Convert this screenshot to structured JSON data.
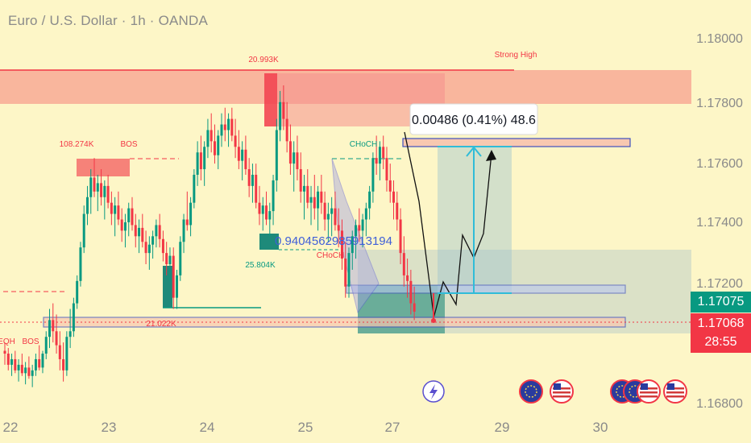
{
  "chart_title": "Euro / U.S. Dollar · 1h · OANDA",
  "measure_label": "0.00486 (0.41%) 48.6",
  "countdown": "28:55",
  "colors": {
    "up": "#089981",
    "down": "#f23645",
    "background": "#fdf6c7",
    "axis_text": "#8a8a8a",
    "zone_red": "#f8aa95",
    "measure": "#30bcd8"
  },
  "annotations": {
    "strong_high": "Strong High",
    "vol_20993": "20.993K",
    "vol_108274": "108.274K",
    "bos_1": "BOS",
    "choch_1": "CHoCH",
    "choch_2": "CHoCH",
    "vol_25804": "25.804K",
    "vol_21022": "21.022K",
    "eqh": "EQH",
    "bos_2": "BOS",
    "fib_text": "0.9404562985913194"
  },
  "chart_data": {
    "type": "candlestick",
    "title": "Euro / U.S. Dollar · 1h · OANDA",
    "x_ticks": [
      "22",
      "23",
      "24",
      "25",
      "27",
      "29",
      "30"
    ],
    "y_ticks": [
      "1.18000",
      "1.17800",
      "1.17600",
      "1.17400",
      "1.17200",
      "1.16800"
    ],
    "ylim": [
      1.1675,
      1.1805
    ],
    "current_price": 1.17075,
    "last_price": 1.17068,
    "candles": [
      [
        1.1693,
        1.1696,
        1.1688,
        1.1692
      ],
      [
        1.1692,
        1.1694,
        1.1686,
        1.1688
      ],
      [
        1.1688,
        1.1692,
        1.1684,
        1.169
      ],
      [
        1.169,
        1.1693,
        1.1685,
        1.1686
      ],
      [
        1.1686,
        1.169,
        1.1682,
        1.1688
      ],
      [
        1.1688,
        1.1692,
        1.1684,
        1.1685
      ],
      [
        1.1685,
        1.1689,
        1.1681,
        1.1687
      ],
      [
        1.1687,
        1.1691,
        1.1683,
        1.1684
      ],
      [
        1.1684,
        1.1688,
        1.168,
        1.1686
      ],
      [
        1.1686,
        1.1692,
        1.1684,
        1.169
      ],
      [
        1.169,
        1.1695,
        1.1686,
        1.1687
      ],
      [
        1.1687,
        1.1693,
        1.1685,
        1.1692
      ],
      [
        1.1692,
        1.17,
        1.169,
        1.1698
      ],
      [
        1.1698,
        1.1708,
        1.1694,
        1.1704
      ],
      [
        1.1704,
        1.171,
        1.1696,
        1.17
      ],
      [
        1.17,
        1.1706,
        1.1692,
        1.1695
      ],
      [
        1.1695,
        1.17,
        1.1686,
        1.169
      ],
      [
        1.169,
        1.1696,
        1.1682,
        1.1686
      ],
      [
        1.1686,
        1.17,
        1.1684,
        1.1698
      ],
      [
        1.1698,
        1.1708,
        1.1694,
        1.17
      ],
      [
        1.17,
        1.1712,
        1.1698,
        1.171
      ],
      [
        1.171,
        1.172,
        1.1708,
        1.1718
      ],
      [
        1.1718,
        1.1732,
        1.1716,
        1.173
      ],
      [
        1.173,
        1.1745,
        1.1728,
        1.1742
      ],
      [
        1.1742,
        1.1752,
        1.1738,
        1.1748
      ],
      [
        1.1748,
        1.1758,
        1.1742,
        1.1755
      ],
      [
        1.1755,
        1.1762,
        1.1748,
        1.175
      ],
      [
        1.175,
        1.1756,
        1.1743,
        1.1753
      ],
      [
        1.1753,
        1.1758,
        1.1745,
        1.1748
      ],
      [
        1.1748,
        1.1754,
        1.174,
        1.1752
      ],
      [
        1.1752,
        1.1756,
        1.1744,
        1.1746
      ],
      [
        1.1746,
        1.175,
        1.1738,
        1.1742
      ],
      [
        1.1742,
        1.1748,
        1.1734,
        1.1745
      ],
      [
        1.1745,
        1.175,
        1.1738,
        1.174
      ],
      [
        1.174,
        1.1744,
        1.1732,
        1.1736
      ],
      [
        1.1736,
        1.1742,
        1.173,
        1.1739
      ],
      [
        1.1739,
        1.1746,
        1.1734,
        1.1744
      ],
      [
        1.1744,
        1.1748,
        1.1736,
        1.1738
      ],
      [
        1.1738,
        1.1742,
        1.173,
        1.1734
      ],
      [
        1.1734,
        1.174,
        1.1728,
        1.1737
      ],
      [
        1.1737,
        1.1742,
        1.173,
        1.1732
      ],
      [
        1.1732,
        1.1736,
        1.1724,
        1.1728
      ],
      [
        1.1728,
        1.1734,
        1.1722,
        1.1731
      ],
      [
        1.1731,
        1.1736,
        1.1726,
        1.1734
      ],
      [
        1.1734,
        1.174,
        1.173,
        1.1738
      ],
      [
        1.1738,
        1.1742,
        1.173,
        1.1733
      ],
      [
        1.1733,
        1.1736,
        1.1725,
        1.1728
      ],
      [
        1.1728,
        1.1732,
        1.172,
        1.1724
      ],
      [
        1.1724,
        1.173,
        1.1718,
        1.1727
      ],
      [
        1.1727,
        1.173,
        1.1708,
        1.1712
      ],
      [
        1.1712,
        1.1722,
        1.1708,
        1.172
      ],
      [
        1.172,
        1.1734,
        1.1718,
        1.1732
      ],
      [
        1.1732,
        1.1742,
        1.1728,
        1.174
      ],
      [
        1.174,
        1.175,
        1.1736,
        1.1738
      ],
      [
        1.1738,
        1.1748,
        1.1734,
        1.1746
      ],
      [
        1.1746,
        1.1758,
        1.1744,
        1.1756
      ],
      [
        1.1756,
        1.1768,
        1.1752,
        1.1764
      ],
      [
        1.1764,
        1.177,
        1.1754,
        1.1758
      ],
      [
        1.1758,
        1.1768,
        1.1752,
        1.1766
      ],
      [
        1.1766,
        1.1776,
        1.1762,
        1.1772
      ],
      [
        1.1772,
        1.1778,
        1.1764,
        1.1768
      ],
      [
        1.1768,
        1.1774,
        1.176,
        1.1763
      ],
      [
        1.1763,
        1.1772,
        1.1758,
        1.177
      ],
      [
        1.177,
        1.1778,
        1.1766,
        1.1774
      ],
      [
        1.1774,
        1.178,
        1.1768,
        1.1772
      ],
      [
        1.1772,
        1.1778,
        1.1766,
        1.1776
      ],
      [
        1.1776,
        1.178,
        1.1768,
        1.177
      ],
      [
        1.177,
        1.1776,
        1.1762,
        1.1766
      ],
      [
        1.1766,
        1.1772,
        1.1758,
        1.1761
      ],
      [
        1.1761,
        1.1768,
        1.1754,
        1.1765
      ],
      [
        1.1765,
        1.177,
        1.1756,
        1.1758
      ],
      [
        1.1758,
        1.1762,
        1.1748,
        1.1752
      ],
      [
        1.1752,
        1.176,
        1.1746,
        1.1756
      ],
      [
        1.1756,
        1.176,
        1.1744,
        1.1746
      ],
      [
        1.1746,
        1.1752,
        1.1738,
        1.1742
      ],
      [
        1.1742,
        1.1748,
        1.1736,
        1.1745
      ],
      [
        1.1745,
        1.175,
        1.1738,
        1.174
      ],
      [
        1.174,
        1.1746,
        1.1734,
        1.1743
      ],
      [
        1.1743,
        1.1756,
        1.1738,
        1.1754
      ],
      [
        1.1754,
        1.1776,
        1.175,
        1.1772
      ],
      [
        1.1772,
        1.1786,
        1.1768,
        1.1782
      ],
      [
        1.1782,
        1.1788,
        1.1772,
        1.1776
      ],
      [
        1.1776,
        1.1782,
        1.1764,
        1.1768
      ],
      [
        1.1768,
        1.1774,
        1.1756,
        1.176
      ],
      [
        1.176,
        1.1768,
        1.175,
        1.1764
      ],
      [
        1.1764,
        1.177,
        1.1754,
        1.1758
      ],
      [
        1.1758,
        1.1764,
        1.1746,
        1.175
      ],
      [
        1.175,
        1.1756,
        1.174,
        1.1752
      ],
      [
        1.1752,
        1.1758,
        1.1744,
        1.1746
      ],
      [
        1.1746,
        1.1752,
        1.1738,
        1.1748
      ],
      [
        1.1748,
        1.1756,
        1.174,
        1.1744
      ],
      [
        1.1744,
        1.1752,
        1.1736,
        1.175
      ],
      [
        1.175,
        1.1756,
        1.1742,
        1.1746
      ],
      [
        1.1746,
        1.175,
        1.1736,
        1.174
      ],
      [
        1.174,
        1.1746,
        1.1732,
        1.1742
      ],
      [
        1.1742,
        1.1748,
        1.1734,
        1.1744
      ],
      [
        1.1744,
        1.175,
        1.1736,
        1.1738
      ],
      [
        1.1738,
        1.1744,
        1.173,
        1.1736
      ],
      [
        1.1736,
        1.174,
        1.1722,
        1.1726
      ],
      [
        1.1726,
        1.1732,
        1.1712,
        1.1716
      ],
      [
        1.1716,
        1.173,
        1.1712,
        1.1728
      ],
      [
        1.1728,
        1.1736,
        1.1722,
        1.1734
      ],
      [
        1.1734,
        1.174,
        1.1726,
        1.1738
      ],
      [
        1.1738,
        1.1744,
        1.1732,
        1.1736
      ],
      [
        1.1736,
        1.1742,
        1.173,
        1.174
      ],
      [
        1.174,
        1.1746,
        1.1734,
        1.1744
      ],
      [
        1.1744,
        1.1752,
        1.174,
        1.175
      ],
      [
        1.175,
        1.1764,
        1.1746,
        1.1762
      ],
      [
        1.1762,
        1.177,
        1.1756,
        1.176
      ],
      [
        1.176,
        1.1768,
        1.1754,
        1.1766
      ],
      [
        1.1766,
        1.177,
        1.1758,
        1.1762
      ],
      [
        1.1762,
        1.1766,
        1.175,
        1.1754
      ],
      [
        1.1754,
        1.176,
        1.1746,
        1.175
      ],
      [
        1.175,
        1.1754,
        1.174,
        1.1746
      ],
      [
        1.1746,
        1.175,
        1.1736,
        1.174
      ],
      [
        1.174,
        1.1744,
        1.1724,
        1.1728
      ],
      [
        1.1728,
        1.1734,
        1.1716,
        1.172
      ],
      [
        1.172,
        1.1726,
        1.1712,
        1.1718
      ],
      [
        1.1718,
        1.1722,
        1.1706,
        1.171
      ],
      [
        1.171,
        1.1716,
        1.1704,
        1.1707
      ]
    ]
  }
}
